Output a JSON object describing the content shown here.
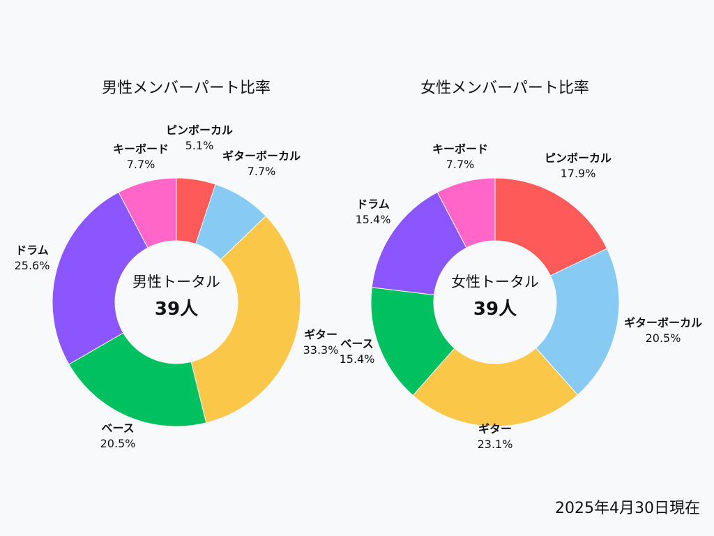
{
  "footer_date": "2025年4月30日現在",
  "center_total_value": "39人",
  "chart_data": [
    {
      "type": "pie",
      "title": "男性メンバーパート比率",
      "center_label": "男性トータル",
      "total": "39人",
      "slices": [
        {
          "label": "ピンボーカル",
          "pct": 5.1,
          "pct_label": "5.1%",
          "color": "#ff5a5a"
        },
        {
          "label": "ギターボーカル",
          "pct": 7.7,
          "pct_label": "7.7%",
          "color": "#87cbf5"
        },
        {
          "label": "ギター",
          "pct": 33.3,
          "pct_label": "33.3%",
          "color": "#fac748"
        },
        {
          "label": "ベース",
          "pct": 20.5,
          "pct_label": "20.5%",
          "color": "#00c060"
        },
        {
          "label": "ドラム",
          "pct": 25.6,
          "pct_label": "25.6%",
          "color": "#8c56ff"
        },
        {
          "label": "キーボード",
          "pct": 7.7,
          "pct_label": "7.7%",
          "color": "#ff66c8"
        }
      ]
    },
    {
      "type": "pie",
      "title": "女性メンバーパート比率",
      "center_label": "女性トータル",
      "total": "39人",
      "slices": [
        {
          "label": "ピンボーカル",
          "pct": 17.9,
          "pct_label": "17.9%",
          "color": "#ff5a5a"
        },
        {
          "label": "ギターボーカル",
          "pct": 20.5,
          "pct_label": "20.5%",
          "color": "#87cbf5"
        },
        {
          "label": "ギター",
          "pct": 23.1,
          "pct_label": "23.1%",
          "color": "#fac748"
        },
        {
          "label": "ベース",
          "pct": 15.4,
          "pct_label": "15.4%",
          "color": "#00c060"
        },
        {
          "label": "ドラム",
          "pct": 15.4,
          "pct_label": "15.4%",
          "color": "#8c56ff"
        },
        {
          "label": "キーボード",
          "pct": 7.7,
          "pct_label": "7.7%",
          "color": "#ff66c8"
        }
      ]
    }
  ]
}
